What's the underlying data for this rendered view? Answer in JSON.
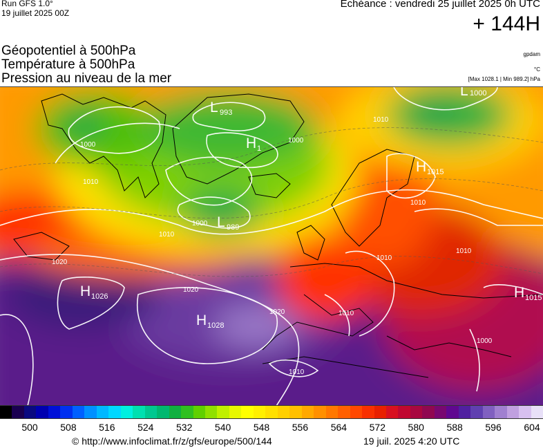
{
  "header": {
    "run_title": "Run GFS 1.0°",
    "run_date": "19 juillet 2025 00Z",
    "valid_time": "Echéance : vendredi 25 juillet 2025 0h UTC",
    "forecast_hour": "+ 144H"
  },
  "layers": [
    "Géopotentiel à 500hPa",
    "Température à 500hPa",
    "Pression au niveau de la mer"
  ],
  "units": {
    "geopotential": "gpdam",
    "temperature": "°C",
    "pressure_range": "[Max 1028.1 | Min 989.2] hPa"
  },
  "pressure_centers": [
    {
      "letter": "L",
      "value": "993"
    },
    {
      "letter": "L",
      "value": "1000"
    },
    {
      "letter": "H",
      "value": "1015"
    },
    {
      "letter": "H",
      "value": "1026"
    },
    {
      "letter": "H",
      "value": "1028"
    },
    {
      "letter": "L",
      "value": "989"
    },
    {
      "letter": "H",
      "value": "1015"
    },
    {
      "letter": "H",
      "value": "1"
    }
  ],
  "isobar_labels": [
    "1000",
    "1010",
    "1010",
    "1020",
    "1020",
    "1010",
    "1000",
    "1010",
    "1020",
    "1010",
    "1010",
    "1010",
    "1000",
    "1000",
    "1010"
  ],
  "colorbar": {
    "colors": [
      "#000000",
      "#1a0050",
      "#0a0a80",
      "#0000b0",
      "#0010d8",
      "#0030f0",
      "#0060ff",
      "#0090ff",
      "#00b8ff",
      "#00d8ff",
      "#00f0e0",
      "#00e0b0",
      "#00c890",
      "#00b870",
      "#10b040",
      "#30c020",
      "#60d000",
      "#90e000",
      "#c0f000",
      "#e8f800",
      "#ffff00",
      "#fff000",
      "#ffe000",
      "#ffd000",
      "#ffc000",
      "#ffa800",
      "#ff9000",
      "#ff7800",
      "#ff6000",
      "#ff4800",
      "#f83000",
      "#e82000",
      "#d81020",
      "#c00830",
      "#a80840",
      "#900850",
      "#780870",
      "#600890",
      "#5020a0",
      "#6040b0",
      "#8060c0",
      "#a080d0",
      "#c0a0e0",
      "#d8c0f0",
      "#e8e0f8"
    ],
    "tick_labels": [
      "500",
      "508",
      "516",
      "524",
      "532",
      "540",
      "548",
      "556",
      "564",
      "572",
      "580",
      "588",
      "596",
      "604"
    ]
  },
  "footer": {
    "url": "© http://www.infoclimat.fr/z/gfs/europe/500/144",
    "timestamp": "19 juil. 2025  4:20 UTC"
  }
}
